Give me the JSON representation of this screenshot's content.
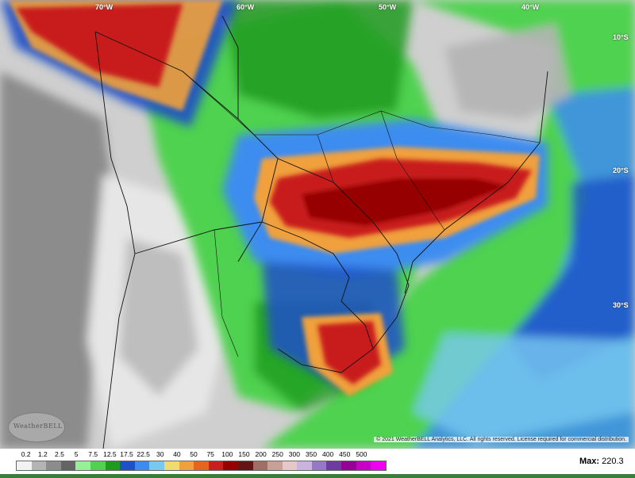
{
  "map": {
    "longitude_labels": [
      "70°W",
      "60°W",
      "50°W",
      "40°W"
    ],
    "latitude_labels": [
      "10°S",
      "20°S",
      "30°S"
    ],
    "copyright": "© 2021 WeatherBELL Analytics, LLC. All rights reserved. License required for commercial distribution.",
    "logo_text": "WeatherBELL"
  },
  "legend": {
    "ticks": [
      "0.2",
      "1.2",
      "2.5",
      "5",
      "7.5",
      "12.5",
      "17.5",
      "22.5",
      "30",
      "40",
      "50",
      "75",
      "100",
      "150",
      "200",
      "250",
      "300",
      "350",
      "400",
      "450",
      "500"
    ],
    "colors": [
      "#f2f2f2",
      "#b4b4b4",
      "#8c8c8c",
      "#646464",
      "#96f096",
      "#50d250",
      "#1e9b1e",
      "#1e50c8",
      "#3c8cf0",
      "#78c8f0",
      "#f0dc6e",
      "#f0a03c",
      "#e6641e",
      "#c81e1e",
      "#960000",
      "#641414",
      "#a06e64",
      "#c8a096",
      "#e6c8c8",
      "#c8b4dc",
      "#9678c8",
      "#6e3ca0",
      "#960096",
      "#c800c8",
      "#f000f0"
    ],
    "max_label": "Max:",
    "max_value": "220.3"
  }
}
